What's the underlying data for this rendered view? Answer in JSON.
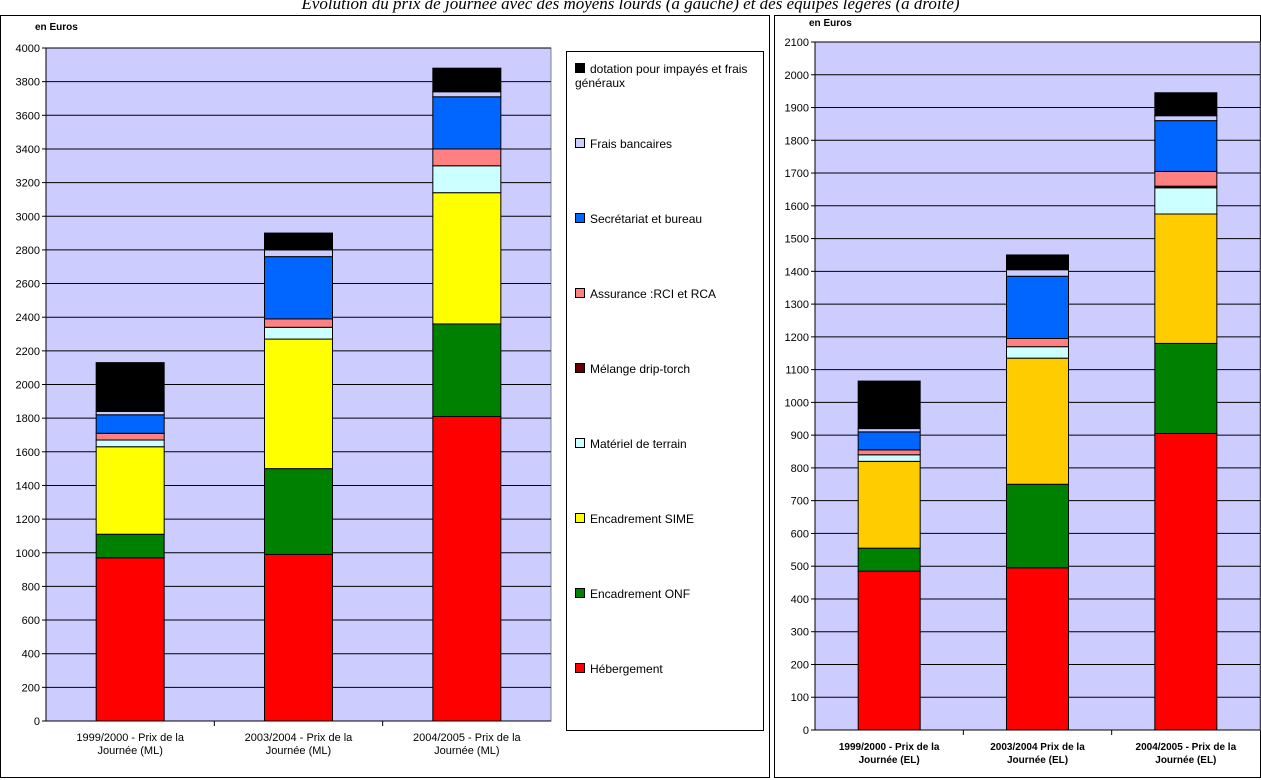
{
  "caption": "Evolution du prix de journée avec des moyens lourds (à gauche) et des équipes légères (à droite)",
  "colors": {
    "plot_bg": "#ccccff",
    "grid": "#000000",
    "dotation": "#000000",
    "frais_bancaires": "#ccccff",
    "secretariat": "#0066ff",
    "assurance": "#ff8080",
    "melange": "#660000",
    "materiel": "#ccffff",
    "sime_left": "#ffff00",
    "sime_right": "#ffcc00",
    "onf": "#008000",
    "hebergement": "#ff0000"
  },
  "legend": [
    {
      "label": "dotation pour impayés et frais généraux",
      "color": "#000000"
    },
    {
      "label": "Frais bancaires",
      "color": "#ccccff"
    },
    {
      "label": "Secrétariat et bureau",
      "color": "#0066ff"
    },
    {
      "label": "Assurance :RCI et RCA",
      "color": "#ff8080"
    },
    {
      "label": "Mélange drip-torch",
      "color": "#660000"
    },
    {
      "label": "Matériel de terrain",
      "color": "#ccffff"
    },
    {
      "label": "Encadrement SIME",
      "color": "#ffff00"
    },
    {
      "label": "Encadrement ONF",
      "color": "#008000"
    },
    {
      "label": "Hébergement",
      "color": "#ff0000"
    }
  ],
  "chart_data": [
    {
      "type": "bar",
      "stacked": true,
      "ylabel": "en Euros",
      "ylim": [
        0,
        4000
      ],
      "ytick_step": 200,
      "grid": true,
      "legend_position": "right",
      "categories": [
        "1999/2000  - Prix de la Journée (ML)",
        "2003/2004  - Prix de la Journée (ML)",
        "2004/2005  - Prix de la Journée (ML)"
      ],
      "category_lines": [
        [
          "1999/2000  - Prix de la",
          "Journée (ML)"
        ],
        [
          "2003/2004  - Prix de la",
          "Journée (ML)"
        ],
        [
          "2004/2005  - Prix de la",
          "Journée (ML)"
        ]
      ],
      "series": [
        {
          "name": "Hébergement",
          "values": [
            970,
            990,
            1810
          ]
        },
        {
          "name": "Encadrement ONF",
          "values": [
            140,
            510,
            550
          ]
        },
        {
          "name": "Encadrement SIME",
          "values": [
            520,
            770,
            780
          ]
        },
        {
          "name": "Matériel de terrain",
          "values": [
            40,
            70,
            160
          ]
        },
        {
          "name": "Mélange drip-torch",
          "values": [
            0,
            0,
            0
          ]
        },
        {
          "name": "Assurance :RCI et RCA",
          "values": [
            40,
            50,
            100
          ]
        },
        {
          "name": "Secrétariat et bureau",
          "values": [
            110,
            370,
            310
          ]
        },
        {
          "name": "Frais bancaires",
          "values": [
            20,
            40,
            30
          ]
        },
        {
          "name": "dotation pour impayés et frais généraux",
          "values": [
            290,
            100,
            140
          ]
        }
      ]
    },
    {
      "type": "bar",
      "stacked": true,
      "ylabel": "en Euros",
      "ylim": [
        0,
        2100
      ],
      "ytick_step": 100,
      "grid": true,
      "categories": [
        "1999/2000  - Prix de la Journée (EL)",
        "2003/2004 Prix de la Journée (EL)",
        "2004/2005 - Prix de la Journée (EL)"
      ],
      "category_lines": [
        [
          "1999/2000  - Prix de la",
          "Journée (EL)"
        ],
        [
          "2003/2004 Prix de la",
          "Journée (EL)"
        ],
        [
          "2004/2005 - Prix de la",
          "Journée (EL)"
        ]
      ],
      "series": [
        {
          "name": "Hébergement",
          "values": [
            485,
            495,
            905
          ]
        },
        {
          "name": "Encadrement ONF",
          "values": [
            70,
            255,
            275
          ]
        },
        {
          "name": "Encadrement SIME",
          "values": [
            265,
            385,
            395
          ]
        },
        {
          "name": "Matériel de terrain",
          "values": [
            20,
            35,
            80
          ]
        },
        {
          "name": "Mélange drip-torch",
          "values": [
            0,
            0,
            5
          ]
        },
        {
          "name": "Assurance :RCI et RCA",
          "values": [
            15,
            25,
            45
          ]
        },
        {
          "name": "Secrétariat et bureau",
          "values": [
            55,
            190,
            155
          ]
        },
        {
          "name": "Frais bancaires",
          "values": [
            10,
            20,
            15
          ]
        },
        {
          "name": "dotation pour impayés et frais généraux",
          "values": [
            145,
            45,
            70
          ]
        }
      ]
    }
  ]
}
